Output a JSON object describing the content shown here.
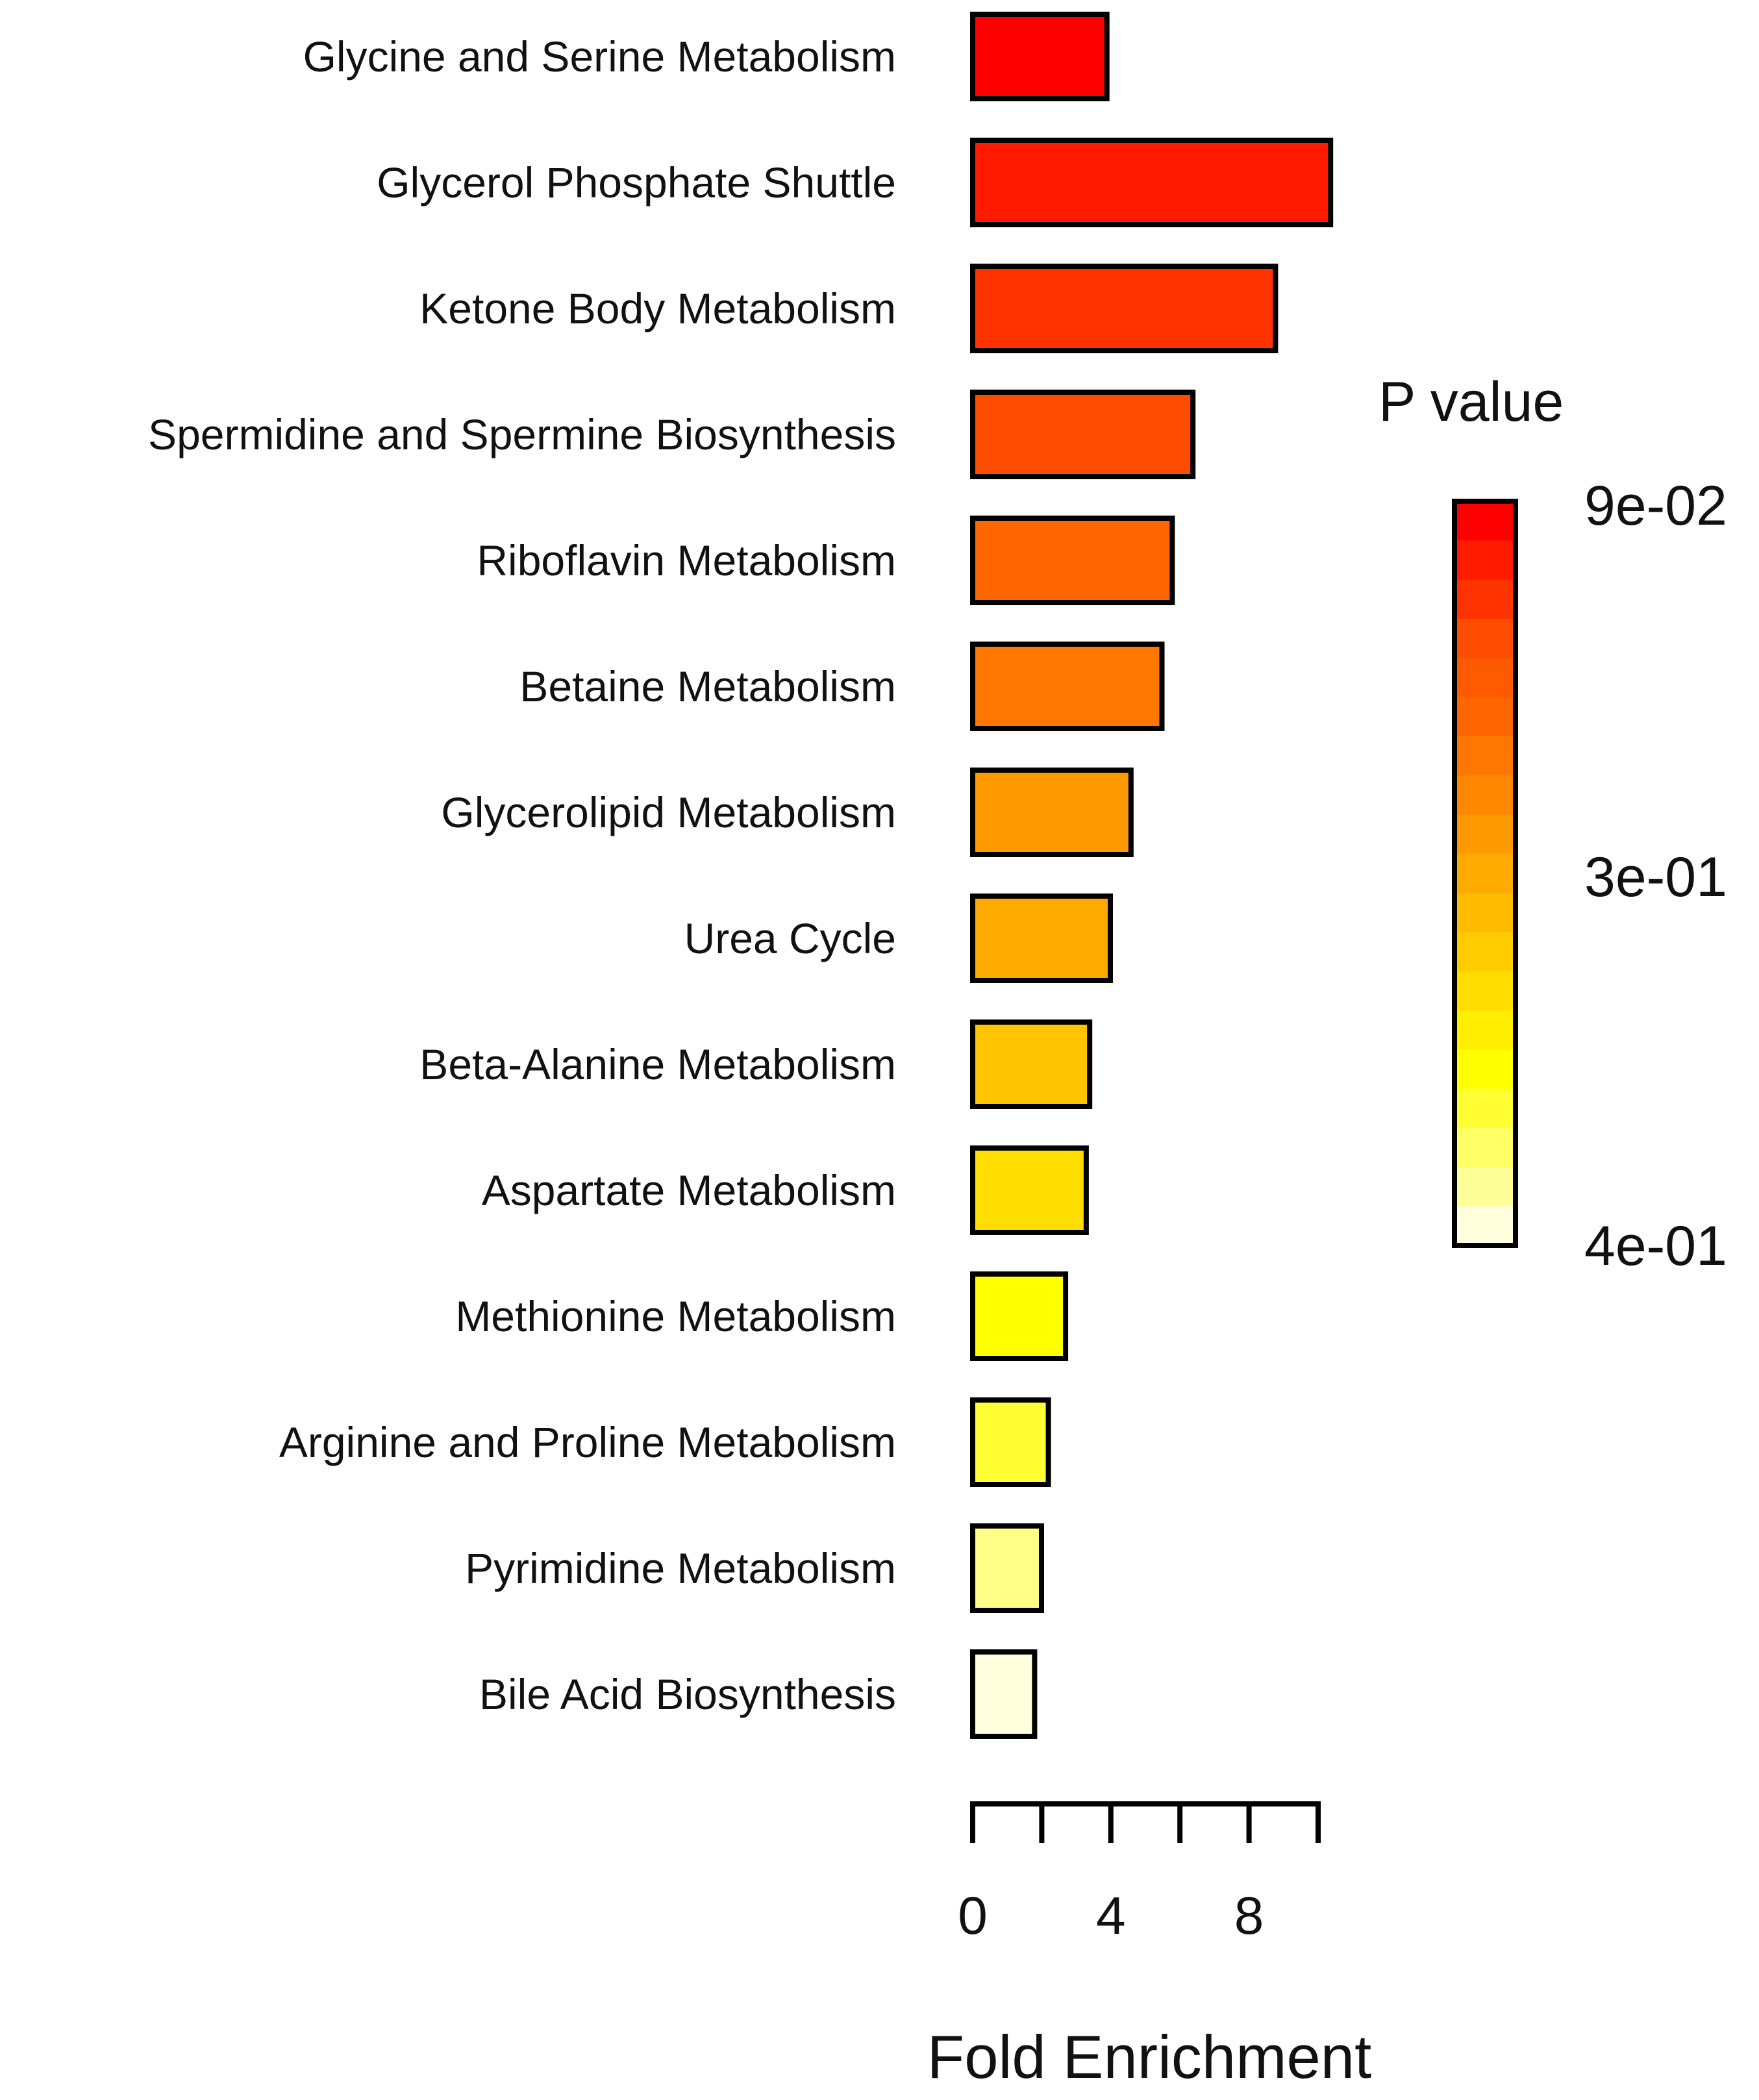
{
  "chart_data": {
    "type": "bar",
    "orientation": "horizontal",
    "categories": [
      "Glycine and Serine Metabolism",
      "Glycerol Phosphate Shuttle",
      "Ketone Body Metabolism",
      "Spermidine and Spermine Biosynthesis",
      "Riboflavin Metabolism",
      "Betaine Metabolism",
      "Glycerolipid Metabolism",
      "Urea Cycle",
      "Beta-Alanine Metabolism",
      "Aspartate Metabolism",
      "Methionine Metabolism",
      "Arginine and Proline Metabolism",
      "Pyrimidine Metabolism",
      "Bile Acid Biosynthesis"
    ],
    "values": [
      3.9,
      10.4,
      8.8,
      6.4,
      5.8,
      5.5,
      4.6,
      4.0,
      3.4,
      3.3,
      2.7,
      2.2,
      2.0,
      1.8
    ],
    "colors": [
      "#ff0000",
      "#ff1a00",
      "#ff3300",
      "#ff4d00",
      "#ff6600",
      "#ff7700",
      "#ff9900",
      "#ffaa00",
      "#ffc400",
      "#ffdd00",
      "#ffff00",
      "#ffff33",
      "#ffff88",
      "#ffffdd"
    ],
    "xlabel": "Fold Enrichment",
    "x_ticks": [
      0,
      2,
      4,
      6,
      8,
      10
    ],
    "x_tick_labels": [
      "0",
      "4",
      "8"
    ],
    "x_tick_label_values": [
      0,
      4,
      8
    ],
    "xlim": [
      0,
      10
    ],
    "legend": {
      "title": "P value",
      "labels": [
        "9e-02",
        "3e-01",
        "4e-01"
      ],
      "placement": "right",
      "gradient_colors": [
        "#ff0000",
        "#ff1a00",
        "#ff3300",
        "#ff4d00",
        "#ff5a00",
        "#ff6600",
        "#ff7700",
        "#ff8800",
        "#ff9900",
        "#ffaa00",
        "#ffbb00",
        "#ffcc00",
        "#ffdd00",
        "#ffee00",
        "#ffff00",
        "#ffff33",
        "#ffff66",
        "#ffff99",
        "#ffffdd"
      ]
    }
  }
}
